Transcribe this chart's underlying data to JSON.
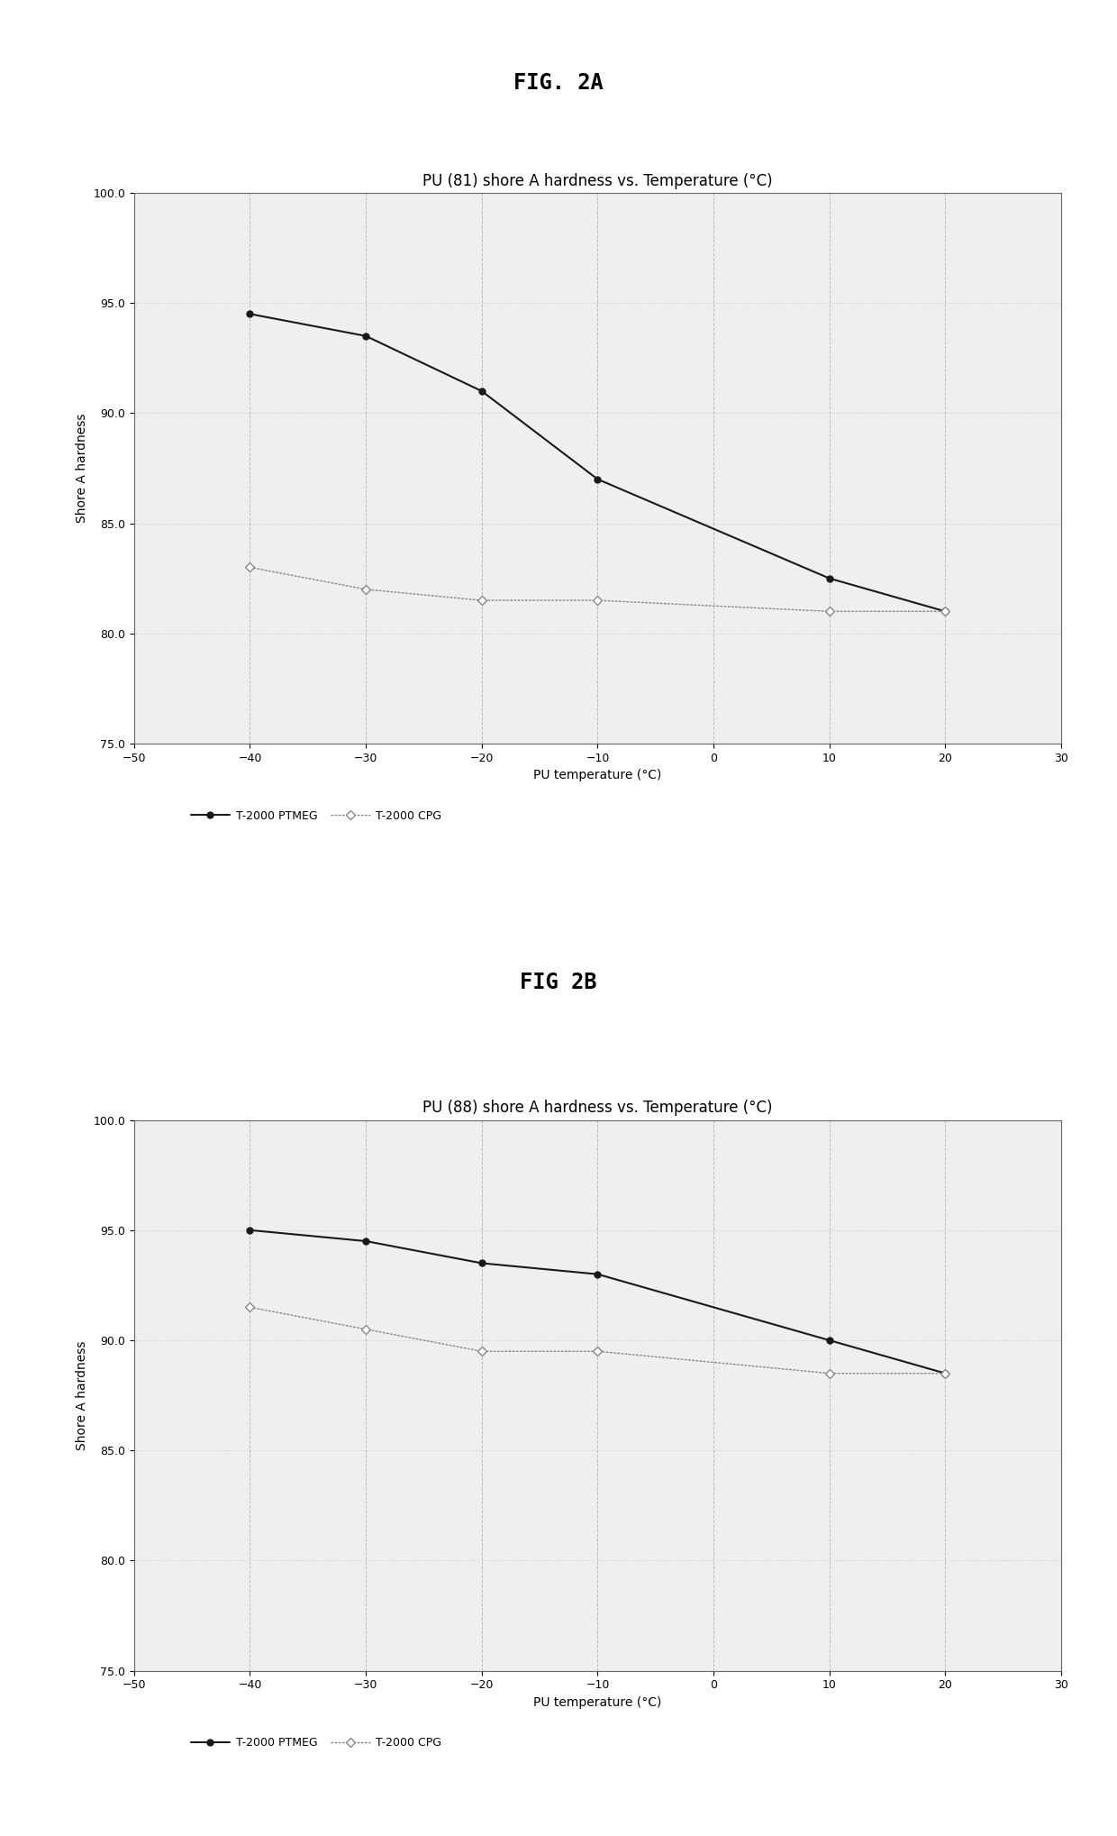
{
  "fig2a": {
    "title_fig": "FIG. 2A",
    "title_chart": "PU (81) shore A hardness vs. Temperature (°C)",
    "xlabel": "PU temperature (°C)",
    "ylabel": "Shore A hardness",
    "xlim": [
      -50,
      30
    ],
    "ylim": [
      75.0,
      100.0
    ],
    "xticks": [
      -50,
      -40,
      -30,
      -20,
      -10,
      0,
      10,
      20,
      30
    ],
    "yticks": [
      75.0,
      80.0,
      85.0,
      90.0,
      95.0,
      100.0
    ],
    "ptmeg_x": [
      -40,
      -30,
      -20,
      -10,
      10,
      20
    ],
    "ptmeg_y": [
      94.5,
      93.5,
      91.0,
      87.0,
      82.5,
      81.0
    ],
    "cpg_x": [
      -40,
      -30,
      -20,
      -10,
      10,
      20
    ],
    "cpg_y": [
      83.0,
      82.0,
      81.5,
      81.5,
      81.0,
      81.0
    ]
  },
  "fig2b": {
    "title_fig": "FIG 2B",
    "title_chart": "PU (88) shore A hardness vs. Temperature (°C)",
    "xlabel": "PU temperature (°C)",
    "ylabel": "Shore A hardness",
    "xlim": [
      -50,
      30
    ],
    "ylim": [
      75.0,
      100.0
    ],
    "xticks": [
      -50,
      -40,
      -30,
      -20,
      -10,
      0,
      10,
      20,
      30
    ],
    "yticks": [
      75.0,
      80.0,
      85.0,
      90.0,
      95.0,
      100.0
    ],
    "ptmeg_x": [
      -40,
      -30,
      -20,
      -10,
      10,
      20
    ],
    "ptmeg_y": [
      95.0,
      94.5,
      93.5,
      93.0,
      90.0,
      88.5
    ],
    "cpg_x": [
      -40,
      -30,
      -20,
      -10,
      10,
      20
    ],
    "cpg_y": [
      91.5,
      90.5,
      89.5,
      89.5,
      88.5,
      88.5
    ]
  },
  "legend_ptmeg": "T-2000 PTMEG",
  "legend_cpg": "T-2000 CPG",
  "color_ptmeg": "#1a1a1a",
  "color_cpg": "#888888",
  "bg_color": "#efefef",
  "grid_color": "#bbbbbb",
  "fig_title_fontsize": 17,
  "chart_title_fontsize": 12,
  "axis_label_fontsize": 10,
  "tick_fontsize": 9,
  "legend_fontsize": 9
}
